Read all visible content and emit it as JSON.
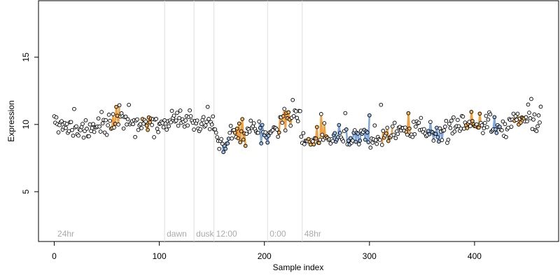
{
  "chart_data": {
    "type": "scatter",
    "title": "",
    "xlabel": "Sample index",
    "ylabel": "Expression",
    "xlim": [
      -15,
      480
    ],
    "ylim": [
      1.3,
      19.2
    ],
    "x_ticks": [
      0,
      100,
      200,
      300,
      400
    ],
    "y_ticks": [
      5,
      10,
      15
    ],
    "grid": false,
    "legend": "none",
    "colors": {
      "point_fill": "#ffffff",
      "point_stroke": "#000000",
      "point_fill_highlight_orange": "#f5b455",
      "point_fill_highlight_blue": "#9dc0e8",
      "segment_orange": "#f0a040",
      "segment_blue": "#7fa7dc",
      "period_line": "#dddddd",
      "period_label": "#aaaaaa"
    },
    "period_markers": [
      {
        "x": 105,
        "label": "dawn"
      },
      {
        "x": 133,
        "label": "dusk"
      },
      {
        "x": 152,
        "label": "12:00"
      },
      {
        "x": 203,
        "label": "0:00"
      },
      {
        "x": 236,
        "label": "48hr"
      }
    ],
    "period_start_label": {
      "x": 3,
      "label": "24hr"
    },
    "anchors": [
      [
        0,
        10.0
      ],
      [
        5,
        9.9
      ],
      [
        10,
        9.7
      ],
      [
        15,
        9.6
      ],
      [
        20,
        9.6
      ],
      [
        25,
        9.7
      ],
      [
        30,
        9.8
      ],
      [
        35,
        9.8
      ],
      [
        40,
        9.7
      ],
      [
        45,
        9.8
      ],
      [
        50,
        9.9
      ],
      [
        55,
        10.1
      ],
      [
        60,
        10.2
      ],
      [
        65,
        10.0
      ],
      [
        70,
        10.1
      ],
      [
        75,
        10.2
      ],
      [
        80,
        10.3
      ],
      [
        85,
        10.2
      ],
      [
        90,
        10.2
      ],
      [
        95,
        10.1
      ],
      [
        100,
        10.1
      ],
      [
        105,
        10.0
      ],
      [
        110,
        10.2
      ],
      [
        115,
        10.3
      ],
      [
        120,
        10.3
      ],
      [
        125,
        10.3
      ],
      [
        130,
        10.3
      ],
      [
        135,
        9.9
      ],
      [
        140,
        9.8
      ],
      [
        145,
        9.9
      ],
      [
        150,
        10.0
      ],
      [
        152,
        9.5
      ],
      [
        155,
        8.7
      ],
      [
        160,
        8.4
      ],
      [
        165,
        8.8
      ],
      [
        170,
        9.3
      ],
      [
        175,
        9.6
      ],
      [
        180,
        9.6
      ],
      [
        185,
        9.4
      ],
      [
        190,
        9.5
      ],
      [
        195,
        9.6
      ],
      [
        200,
        9.3
      ],
      [
        205,
        9.2
      ],
      [
        210,
        9.6
      ],
      [
        215,
        10.2
      ],
      [
        220,
        10.4
      ],
      [
        225,
        10.6
      ],
      [
        230,
        10.8
      ],
      [
        233,
        10.8
      ],
      [
        236,
        9.0
      ],
      [
        240,
        8.5
      ],
      [
        245,
        8.9
      ],
      [
        250,
        9.2
      ],
      [
        255,
        9.0
      ],
      [
        260,
        8.8
      ],
      [
        265,
        8.7
      ],
      [
        270,
        9.0
      ],
      [
        275,
        9.0
      ],
      [
        280,
        8.7
      ],
      [
        285,
        8.9
      ],
      [
        290,
        9.2
      ],
      [
        295,
        9.3
      ],
      [
        300,
        9.0
      ],
      [
        305,
        8.9
      ],
      [
        310,
        9.0
      ],
      [
        315,
        9.2
      ],
      [
        320,
        9.4
      ],
      [
        325,
        9.5
      ],
      [
        330,
        9.5
      ],
      [
        335,
        9.6
      ],
      [
        340,
        9.7
      ],
      [
        345,
        9.8
      ],
      [
        350,
        9.7
      ],
      [
        355,
        9.5
      ],
      [
        360,
        9.4
      ],
      [
        365,
        9.6
      ],
      [
        370,
        9.5
      ],
      [
        375,
        9.6
      ],
      [
        380,
        9.8
      ],
      [
        385,
        9.9
      ],
      [
        390,
        10.1
      ],
      [
        395,
        10.3
      ],
      [
        400,
        10.3
      ],
      [
        405,
        10.4
      ],
      [
        410,
        10.2
      ],
      [
        415,
        10.0
      ],
      [
        420,
        9.7
      ],
      [
        425,
        9.6
      ],
      [
        430,
        9.7
      ],
      [
        435,
        10.0
      ],
      [
        440,
        10.2
      ],
      [
        445,
        10.3
      ],
      [
        450,
        10.6
      ],
      [
        455,
        10.3
      ],
      [
        460,
        10.5
      ],
      [
        463,
        10.7
      ]
    ],
    "n_points": 464,
    "noise_sd": 0.42,
    "seed": 7,
    "orange_ranges": [
      [
        55,
        62
      ],
      [
        84,
        92
      ],
      [
        170,
        182
      ],
      [
        213,
        226
      ],
      [
        242,
        262
      ],
      [
        312,
        322
      ],
      [
        335,
        340
      ],
      [
        392,
        406
      ],
      [
        438,
        448
      ]
    ],
    "blue_ranges": [
      [
        158,
        166
      ],
      [
        195,
        205
      ],
      [
        264,
        272
      ],
      [
        278,
        300
      ],
      [
        355,
        370
      ],
      [
        416,
        424
      ]
    ]
  }
}
